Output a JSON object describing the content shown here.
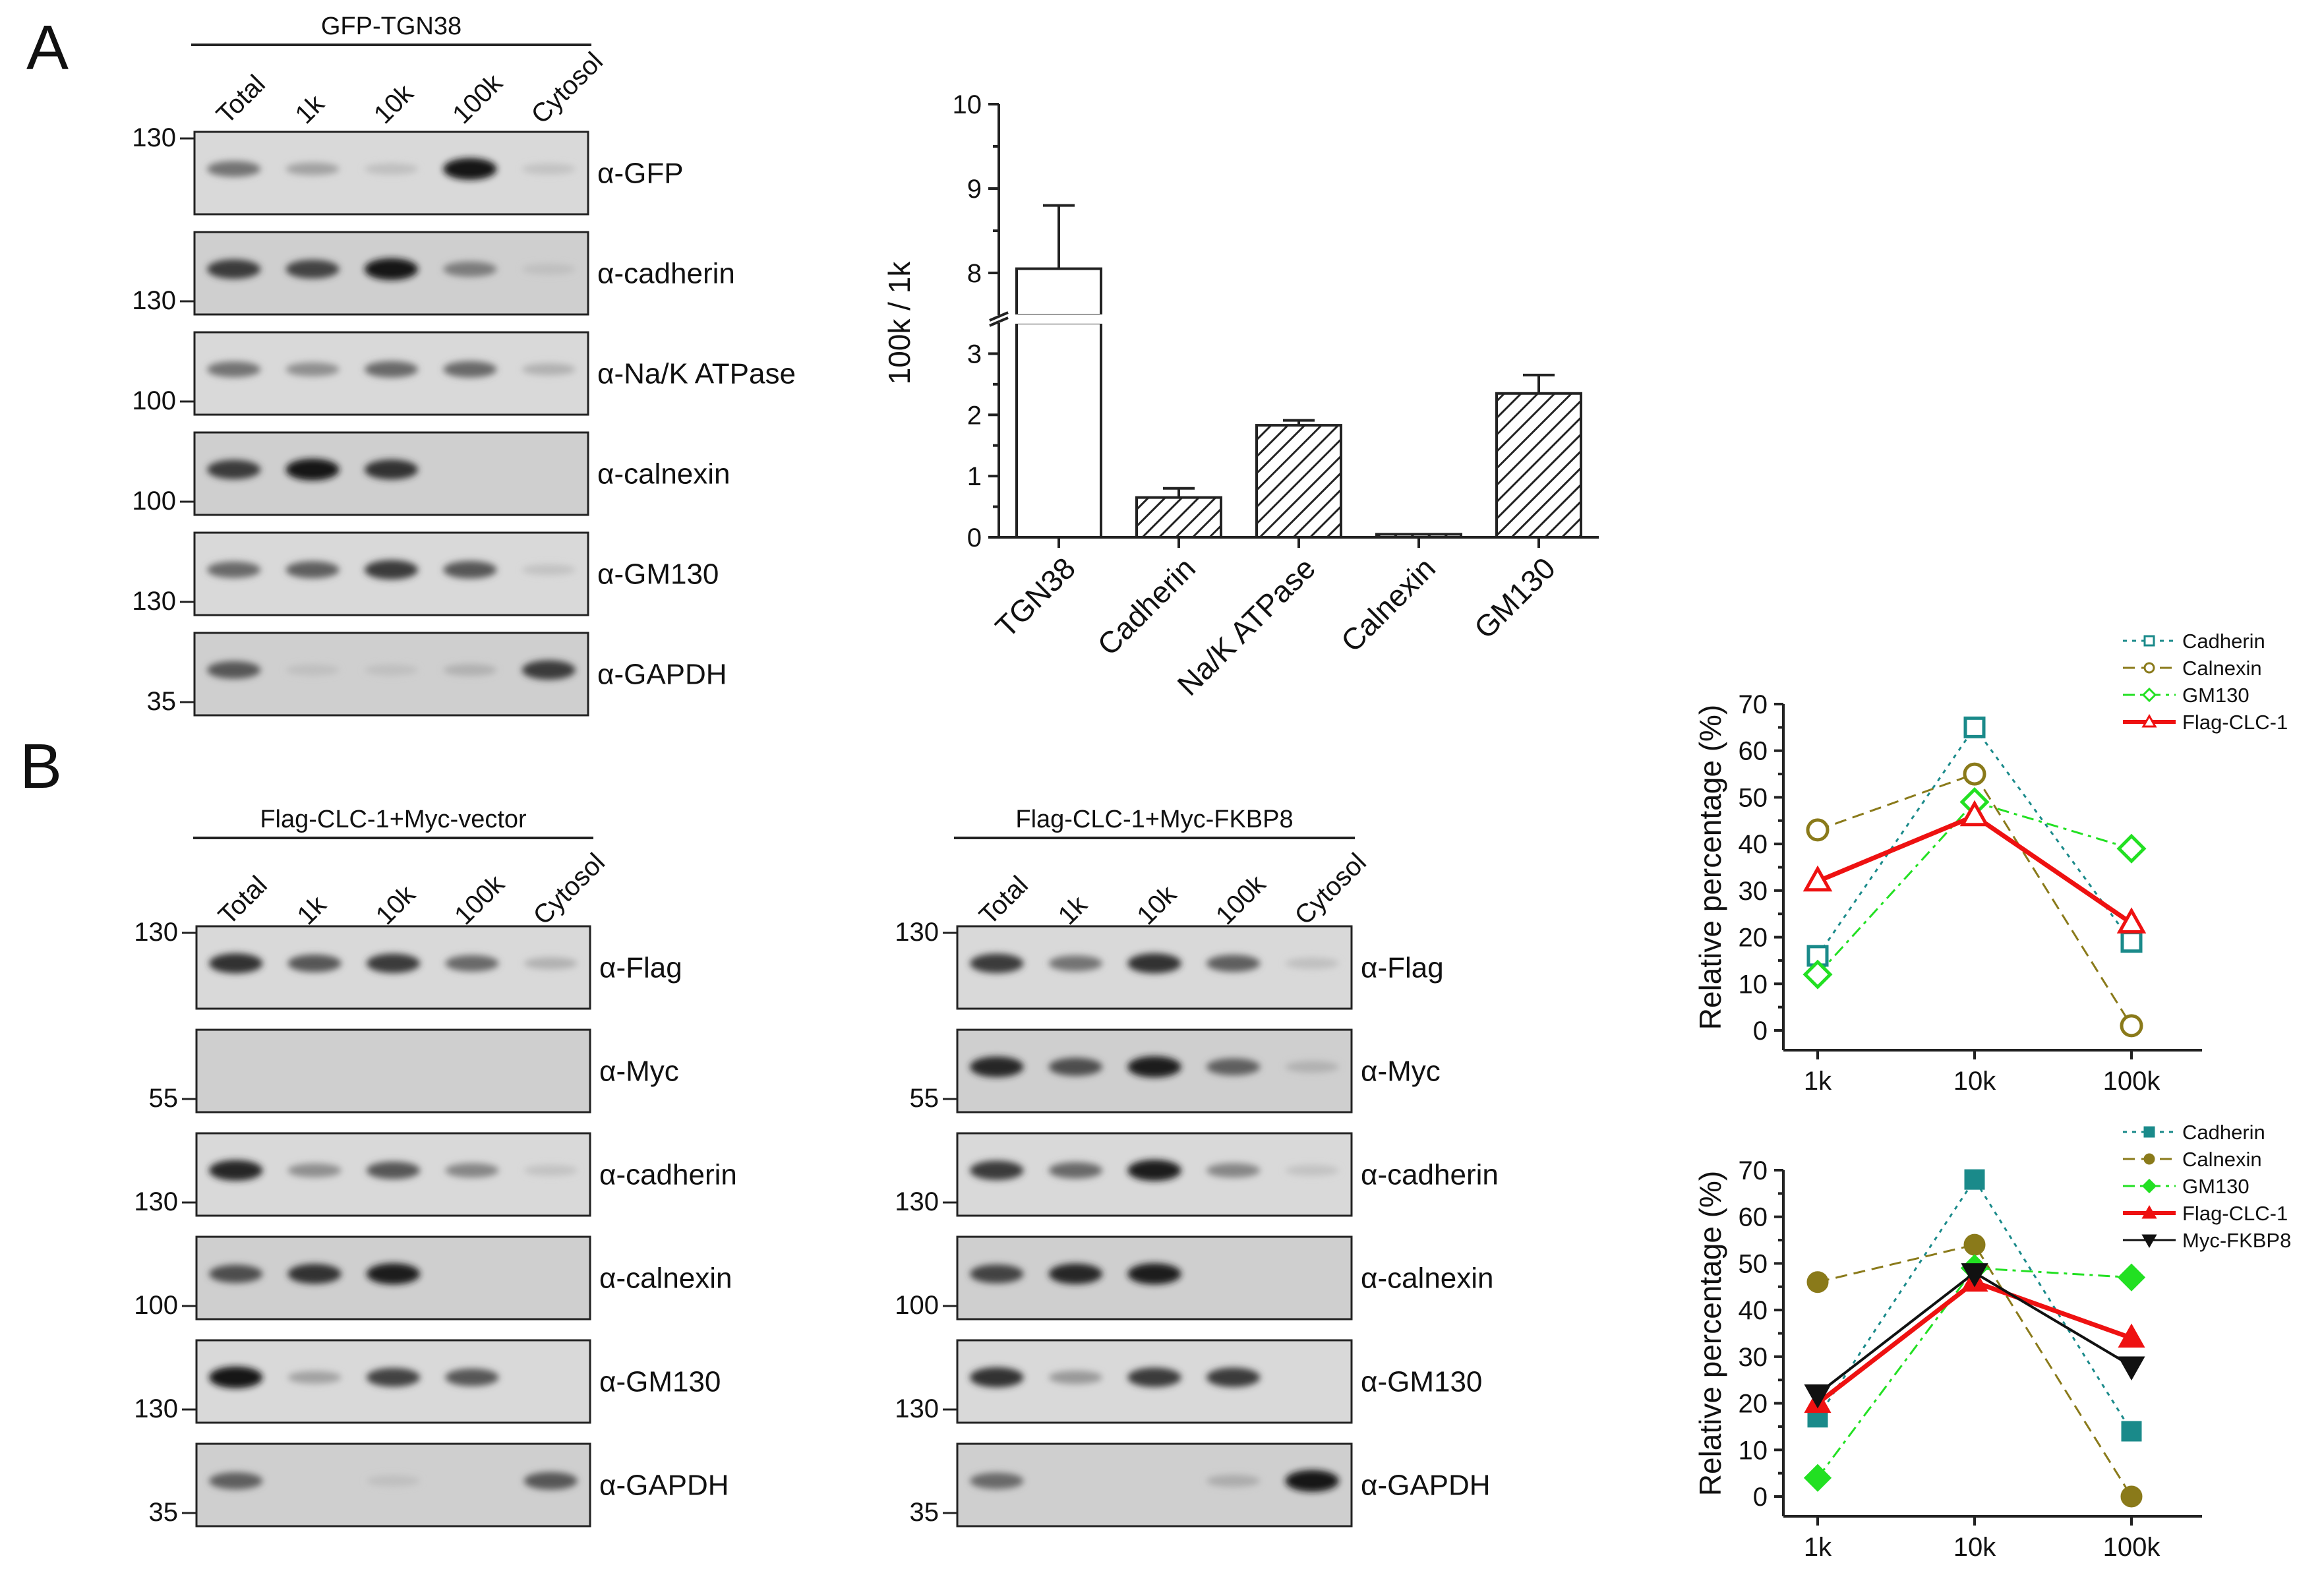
{
  "panels": {
    "a": "A",
    "b": "B"
  },
  "lanes": [
    "Total",
    "1k",
    "10k",
    "100k",
    "Cytosol"
  ],
  "blots": {
    "a": {
      "header": "GFP-TGN38",
      "rows": [
        {
          "antibody": "α-GFP",
          "mw": "130",
          "intensity": [
            0.45,
            0.2,
            0.05,
            0.95,
            0.03
          ]
        },
        {
          "antibody": "α-cadherin",
          "mw": "130",
          "intensity": [
            0.75,
            0.7,
            0.95,
            0.4,
            0.05
          ]
        },
        {
          "antibody": "α-Na/K ATPase",
          "mw": "100",
          "intensity": [
            0.45,
            0.3,
            0.5,
            0.5,
            0.12
          ]
        },
        {
          "antibody": "α-calnexin",
          "mw": "100",
          "intensity": [
            0.75,
            0.95,
            0.8,
            0.0,
            0.0
          ]
        },
        {
          "antibody": "α-GM130",
          "mw": "130",
          "intensity": [
            0.5,
            0.55,
            0.75,
            0.6,
            0.03
          ]
        },
        {
          "antibody": "α-GAPDH",
          "mw": "35",
          "intensity": [
            0.6,
            0.05,
            0.05,
            0.12,
            0.75
          ]
        }
      ]
    },
    "b_left": {
      "header": "Flag-CLC-1+Myc-vector",
      "rows": [
        {
          "antibody": "α-Flag",
          "mw": "130",
          "intensity": [
            0.8,
            0.6,
            0.75,
            0.5,
            0.12
          ]
        },
        {
          "antibody": "α-Myc",
          "mw": "55",
          "intensity": [
            0.0,
            0.0,
            0.0,
            0.0,
            0.0
          ]
        },
        {
          "antibody": "α-cadherin",
          "mw": "130",
          "intensity": [
            0.85,
            0.3,
            0.6,
            0.35,
            0.03
          ]
        },
        {
          "antibody": "α-calnexin",
          "mw": "100",
          "intensity": [
            0.65,
            0.8,
            0.9,
            0.0,
            0.0
          ]
        },
        {
          "antibody": "α-GM130",
          "mw": "130",
          "intensity": [
            0.95,
            0.2,
            0.7,
            0.6,
            0.0
          ]
        },
        {
          "antibody": "α-GAPDH",
          "mw": "35",
          "intensity": [
            0.55,
            0.0,
            0.05,
            0.0,
            0.6
          ]
        }
      ]
    },
    "b_right": {
      "header": "Flag-CLC-1+Myc-FKBP8",
      "rows": [
        {
          "antibody": "α-Flag",
          "mw": "130",
          "intensity": [
            0.75,
            0.45,
            0.8,
            0.55,
            0.05
          ]
        },
        {
          "antibody": "α-Myc",
          "mw": "55",
          "intensity": [
            0.85,
            0.65,
            0.9,
            0.55,
            0.12
          ]
        },
        {
          "antibody": "α-cadherin",
          "mw": "130",
          "intensity": [
            0.75,
            0.5,
            0.9,
            0.35,
            0.03
          ]
        },
        {
          "antibody": "α-calnexin",
          "mw": "100",
          "intensity": [
            0.7,
            0.85,
            0.9,
            0.0,
            0.0
          ]
        },
        {
          "antibody": "α-GM130",
          "mw": "130",
          "intensity": [
            0.8,
            0.25,
            0.75,
            0.75,
            0.0
          ]
        },
        {
          "antibody": "α-GAPDH",
          "mw": "35",
          "intensity": [
            0.5,
            0.0,
            0.0,
            0.15,
            0.95
          ]
        }
      ]
    }
  },
  "chart_data": [
    {
      "type": "bar",
      "categories": [
        "TGN38",
        "Cadherin",
        "Na/K ATPase",
        "Calnexin",
        "GM130"
      ],
      "values": [
        8.05,
        0.65,
        1.83,
        0.05,
        2.35
      ],
      "errors": [
        0.75,
        0.15,
        0.08,
        0.0,
        0.3
      ],
      "fills": [
        "open",
        "hatched",
        "hatched",
        "hatched",
        "hatched"
      ],
      "ylabel": "100k / 1k",
      "ylim": [
        0,
        10
      ],
      "axis_break": [
        3.5,
        7.5
      ],
      "yticks": [
        "0",
        "1",
        "2",
        "3",
        "8",
        "9",
        "10"
      ]
    },
    {
      "type": "line",
      "categories": [
        "1k",
        "10k",
        "100k"
      ],
      "ylabel": "Relative percentage (%)",
      "ylim": [
        0,
        70
      ],
      "yticks": [
        "0",
        "10",
        "20",
        "30",
        "40",
        "50",
        "60",
        "70"
      ],
      "legend_position": "top-right",
      "series": [
        {
          "name": "Cadherin",
          "values": [
            16,
            65,
            19
          ],
          "color": "#1a8a8a",
          "marker": "square",
          "filled": false,
          "dash": "dot"
        },
        {
          "name": "Calnexin",
          "values": [
            43,
            55,
            1
          ],
          "color": "#8a7a1a",
          "marker": "circle",
          "filled": false,
          "dash": "dash"
        },
        {
          "name": "GM130",
          "values": [
            12,
            49,
            39
          ],
          "color": "#22e022",
          "marker": "diamond",
          "filled": false,
          "dash": "dashdot"
        },
        {
          "name": "Flag-CLC-1",
          "values": [
            32,
            46,
            23
          ],
          "color": "#ee1111",
          "marker": "triangle",
          "filled": false,
          "dash": "solid"
        }
      ]
    },
    {
      "type": "line",
      "categories": [
        "1k",
        "10k",
        "100k"
      ],
      "ylabel": "Relative percentage (%)",
      "ylim": [
        0,
        70
      ],
      "yticks": [
        "0",
        "10",
        "20",
        "30",
        "40",
        "50",
        "60",
        "70"
      ],
      "legend_position": "top-right",
      "series": [
        {
          "name": "Cadherin",
          "values": [
            17,
            68,
            14
          ],
          "color": "#1a8a8a",
          "marker": "square",
          "filled": true,
          "dash": "dot"
        },
        {
          "name": "Calnexin",
          "values": [
            46,
            54,
            0
          ],
          "color": "#8a7a1a",
          "marker": "circle",
          "filled": true,
          "dash": "dash"
        },
        {
          "name": "GM130",
          "values": [
            4,
            49,
            47
          ],
          "color": "#22e022",
          "marker": "diamond",
          "filled": true,
          "dash": "dashdot"
        },
        {
          "name": "Flag-CLC-1",
          "values": [
            20,
            46,
            34
          ],
          "color": "#ee1111",
          "marker": "triangle",
          "filled": true,
          "dash": "solid"
        },
        {
          "name": "Myc-FKBP8",
          "values": [
            22,
            48,
            28
          ],
          "color": "#111111",
          "marker": "triangle-down",
          "filled": true,
          "dash": "solid"
        }
      ]
    }
  ]
}
